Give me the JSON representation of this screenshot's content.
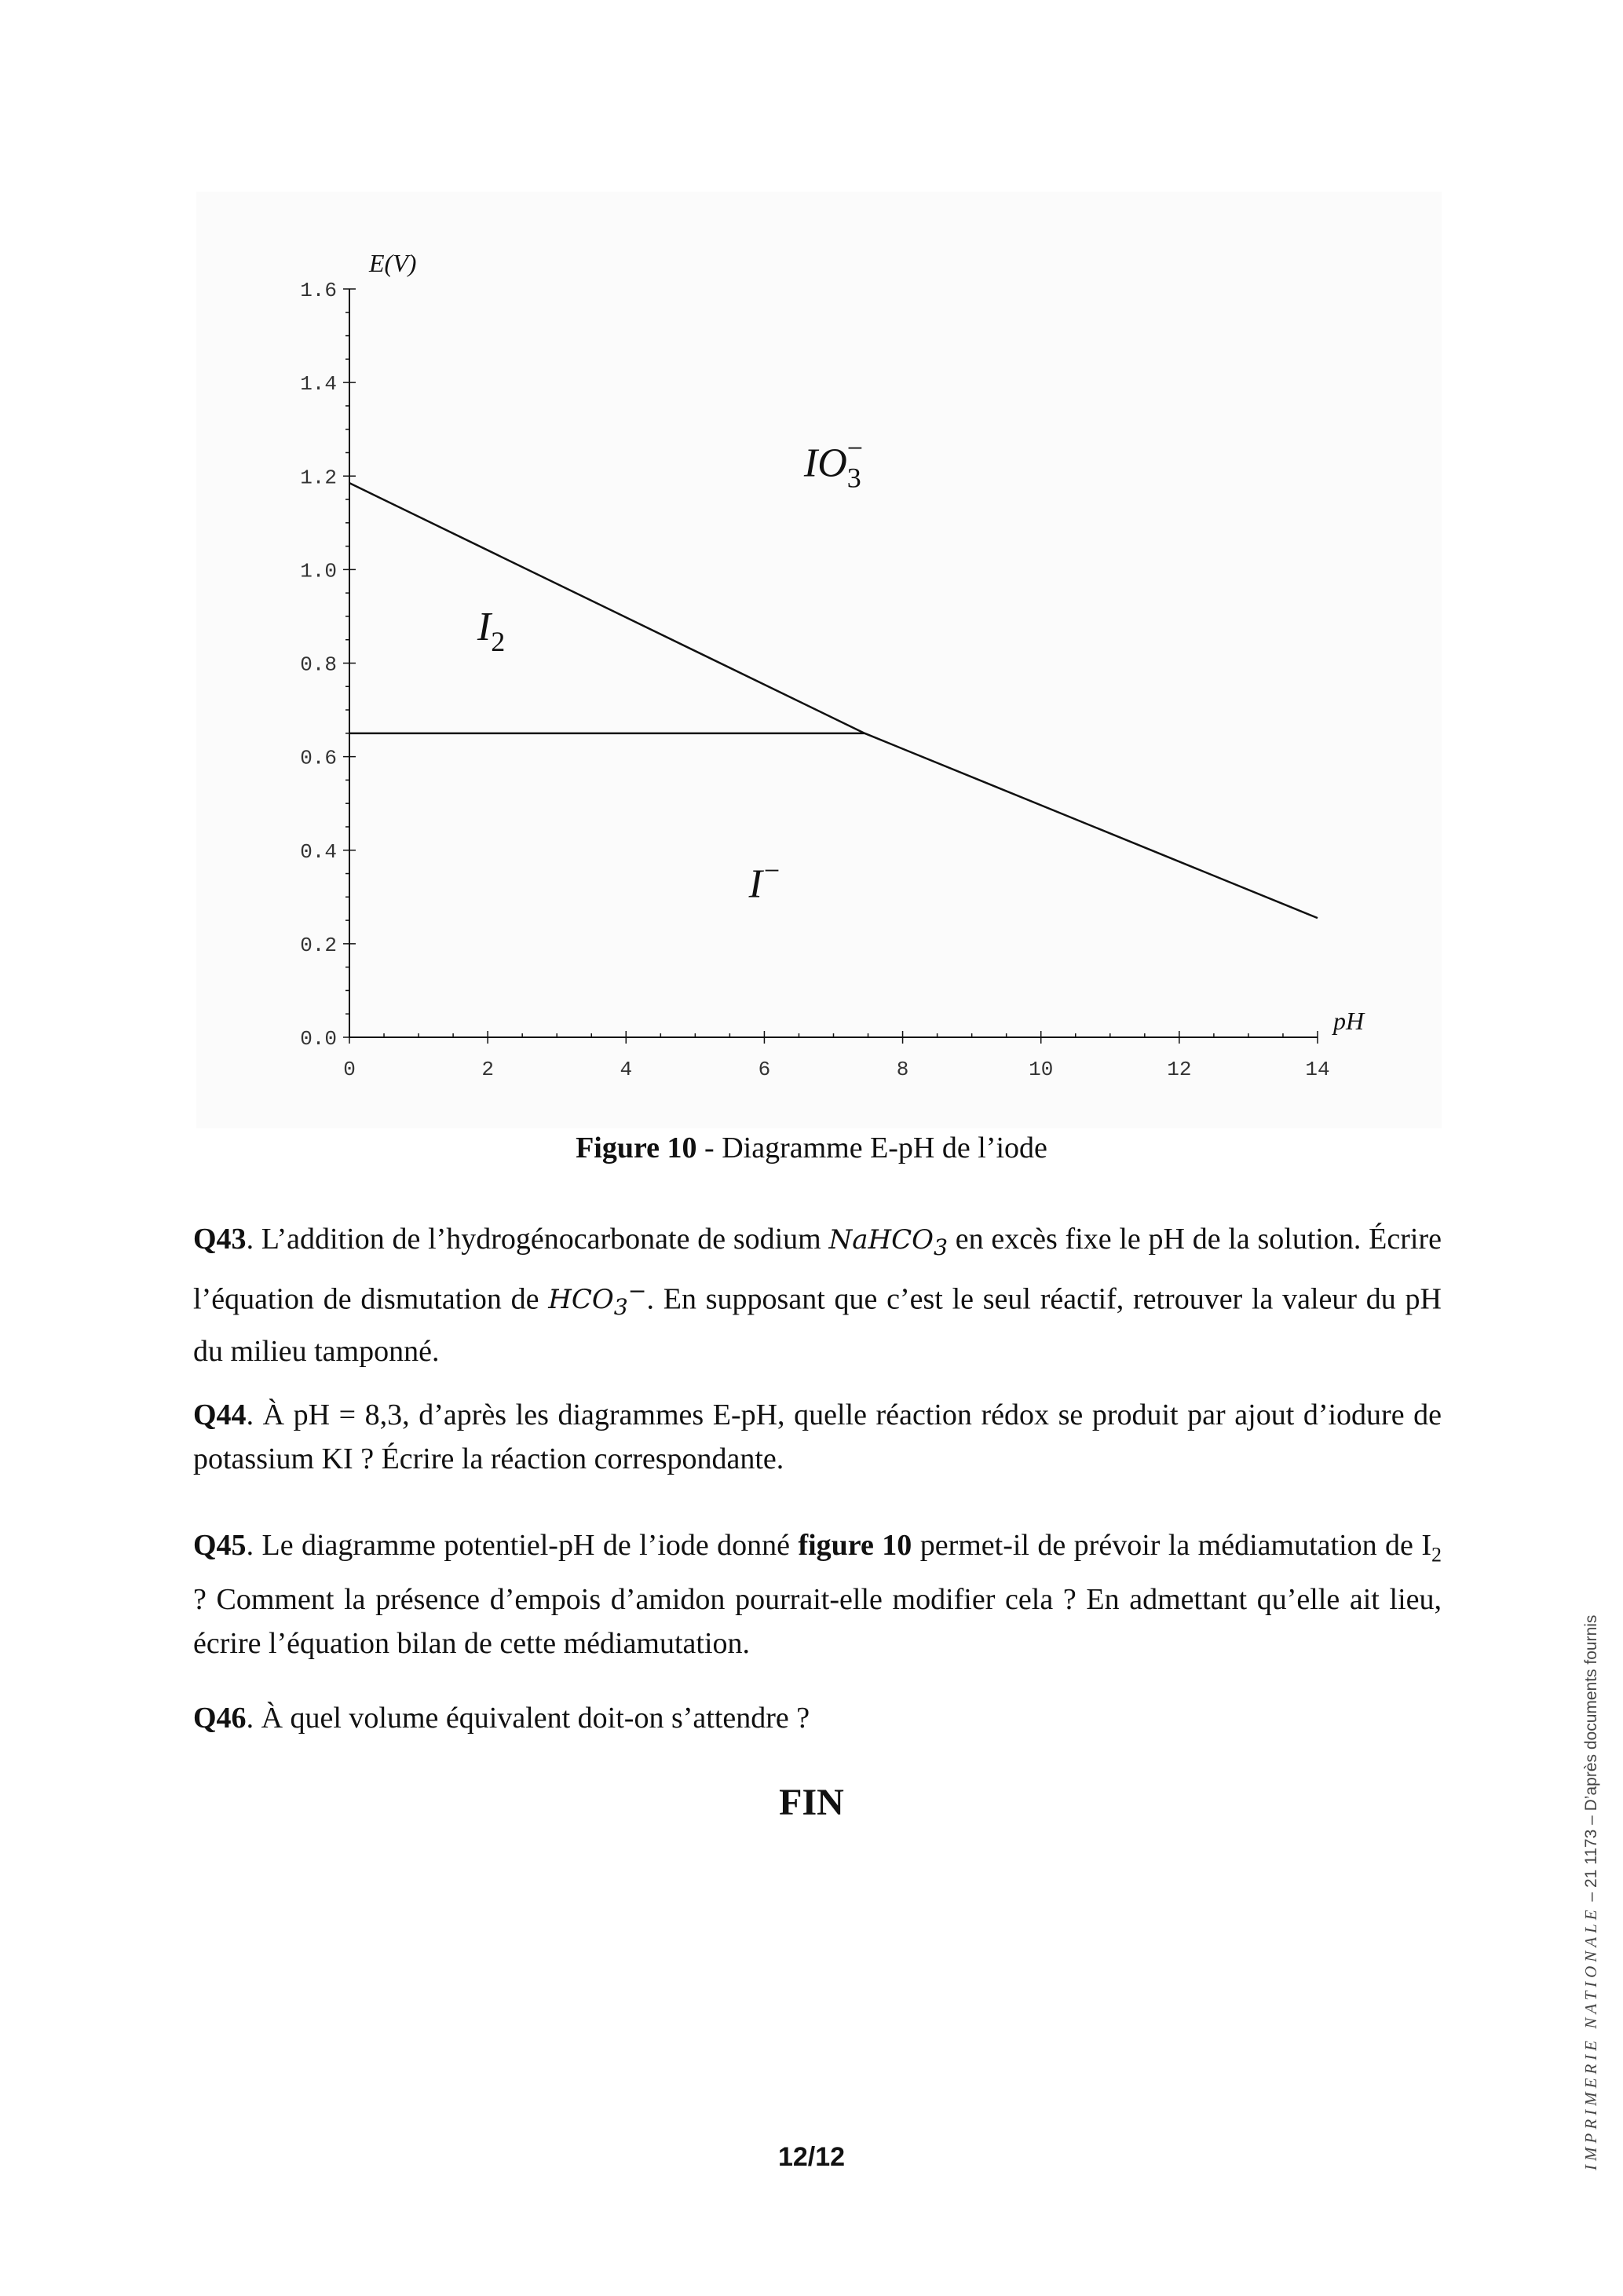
{
  "chart_data": {
    "type": "line",
    "xlabel": "pH",
    "ylabel": "E(V)",
    "xlim": [
      0,
      14
    ],
    "ylim": [
      0,
      1.6
    ],
    "x_ticks": [
      "0",
      "2",
      "4",
      "6",
      "8",
      "10",
      "12",
      "14"
    ],
    "y_ticks": [
      "0.0",
      "0.2",
      "0.4",
      "0.6",
      "0.8",
      "1.0",
      "1.2",
      "1.4",
      "1.6"
    ],
    "grid": false,
    "series": [
      {
        "points": [
          [
            0,
            1.185
          ],
          [
            7.45,
            0.65
          ],
          [
            14,
            0.255
          ]
        ]
      },
      {
        "points": [
          [
            0,
            0.65
          ],
          [
            7.45,
            0.65
          ]
        ]
      }
    ],
    "annotations": [
      {
        "text": "IO",
        "sub": "3",
        "sup": "−",
        "x": 7.0,
        "y": 1.23
      },
      {
        "text": "I",
        "sub": "2",
        "sup": "",
        "x": 2.05,
        "y": 0.88
      },
      {
        "text": "I",
        "sub": "",
        "sup": "−",
        "x": 6.0,
        "y": 0.33
      }
    ]
  },
  "caption": {
    "label": "Figure 10",
    "text": " - Diagramme E-pH de l’iode"
  },
  "questions": {
    "q43": {
      "label": "Q43",
      "t1": ". L’addition de l’hydrogénocarbonate de sodium ",
      "f1": "NaHCO",
      "f1sub": "3",
      "t2": " en excès fixe le pH de la solution. Écrire l’équation de dismutation de ",
      "f2": "HCO",
      "f2sub": "3",
      "f2sup": "−",
      "t3": ". En supposant que c’est le seul réactif, retrouver la valeur du pH du milieu tamponné."
    },
    "q44": {
      "label": "Q44",
      "t1": ". À pH = 8,3, d’après les diagrammes E-pH, quelle réaction rédox se produit par ajout d’iodure de potassium KI ? Écrire la réaction correspondante."
    },
    "q45": {
      "label": "Q45",
      "t1": ". Le diagramme potentiel-pH de l’iode donné ",
      "bold": "figure 10",
      "t2": " permet-il de prévoir la médiamutation de I",
      "sub": "2",
      "t3": " ? Comment la présence d’empois d’amidon pourrait-elle modifier cela ? En admettant qu’elle ait lieu, écrire l’équation bilan de cette médiamutation."
    },
    "q46": {
      "label": "Q46",
      "t1": ". À quel volume équivalent doit-on s’attendre ?"
    }
  },
  "fin": "FIN",
  "page_number": "12/12",
  "side_note": {
    "imprint": "IMPRIMERIE NATIONALE",
    "rest": " – 21 1173 – D’après documents fournis"
  }
}
